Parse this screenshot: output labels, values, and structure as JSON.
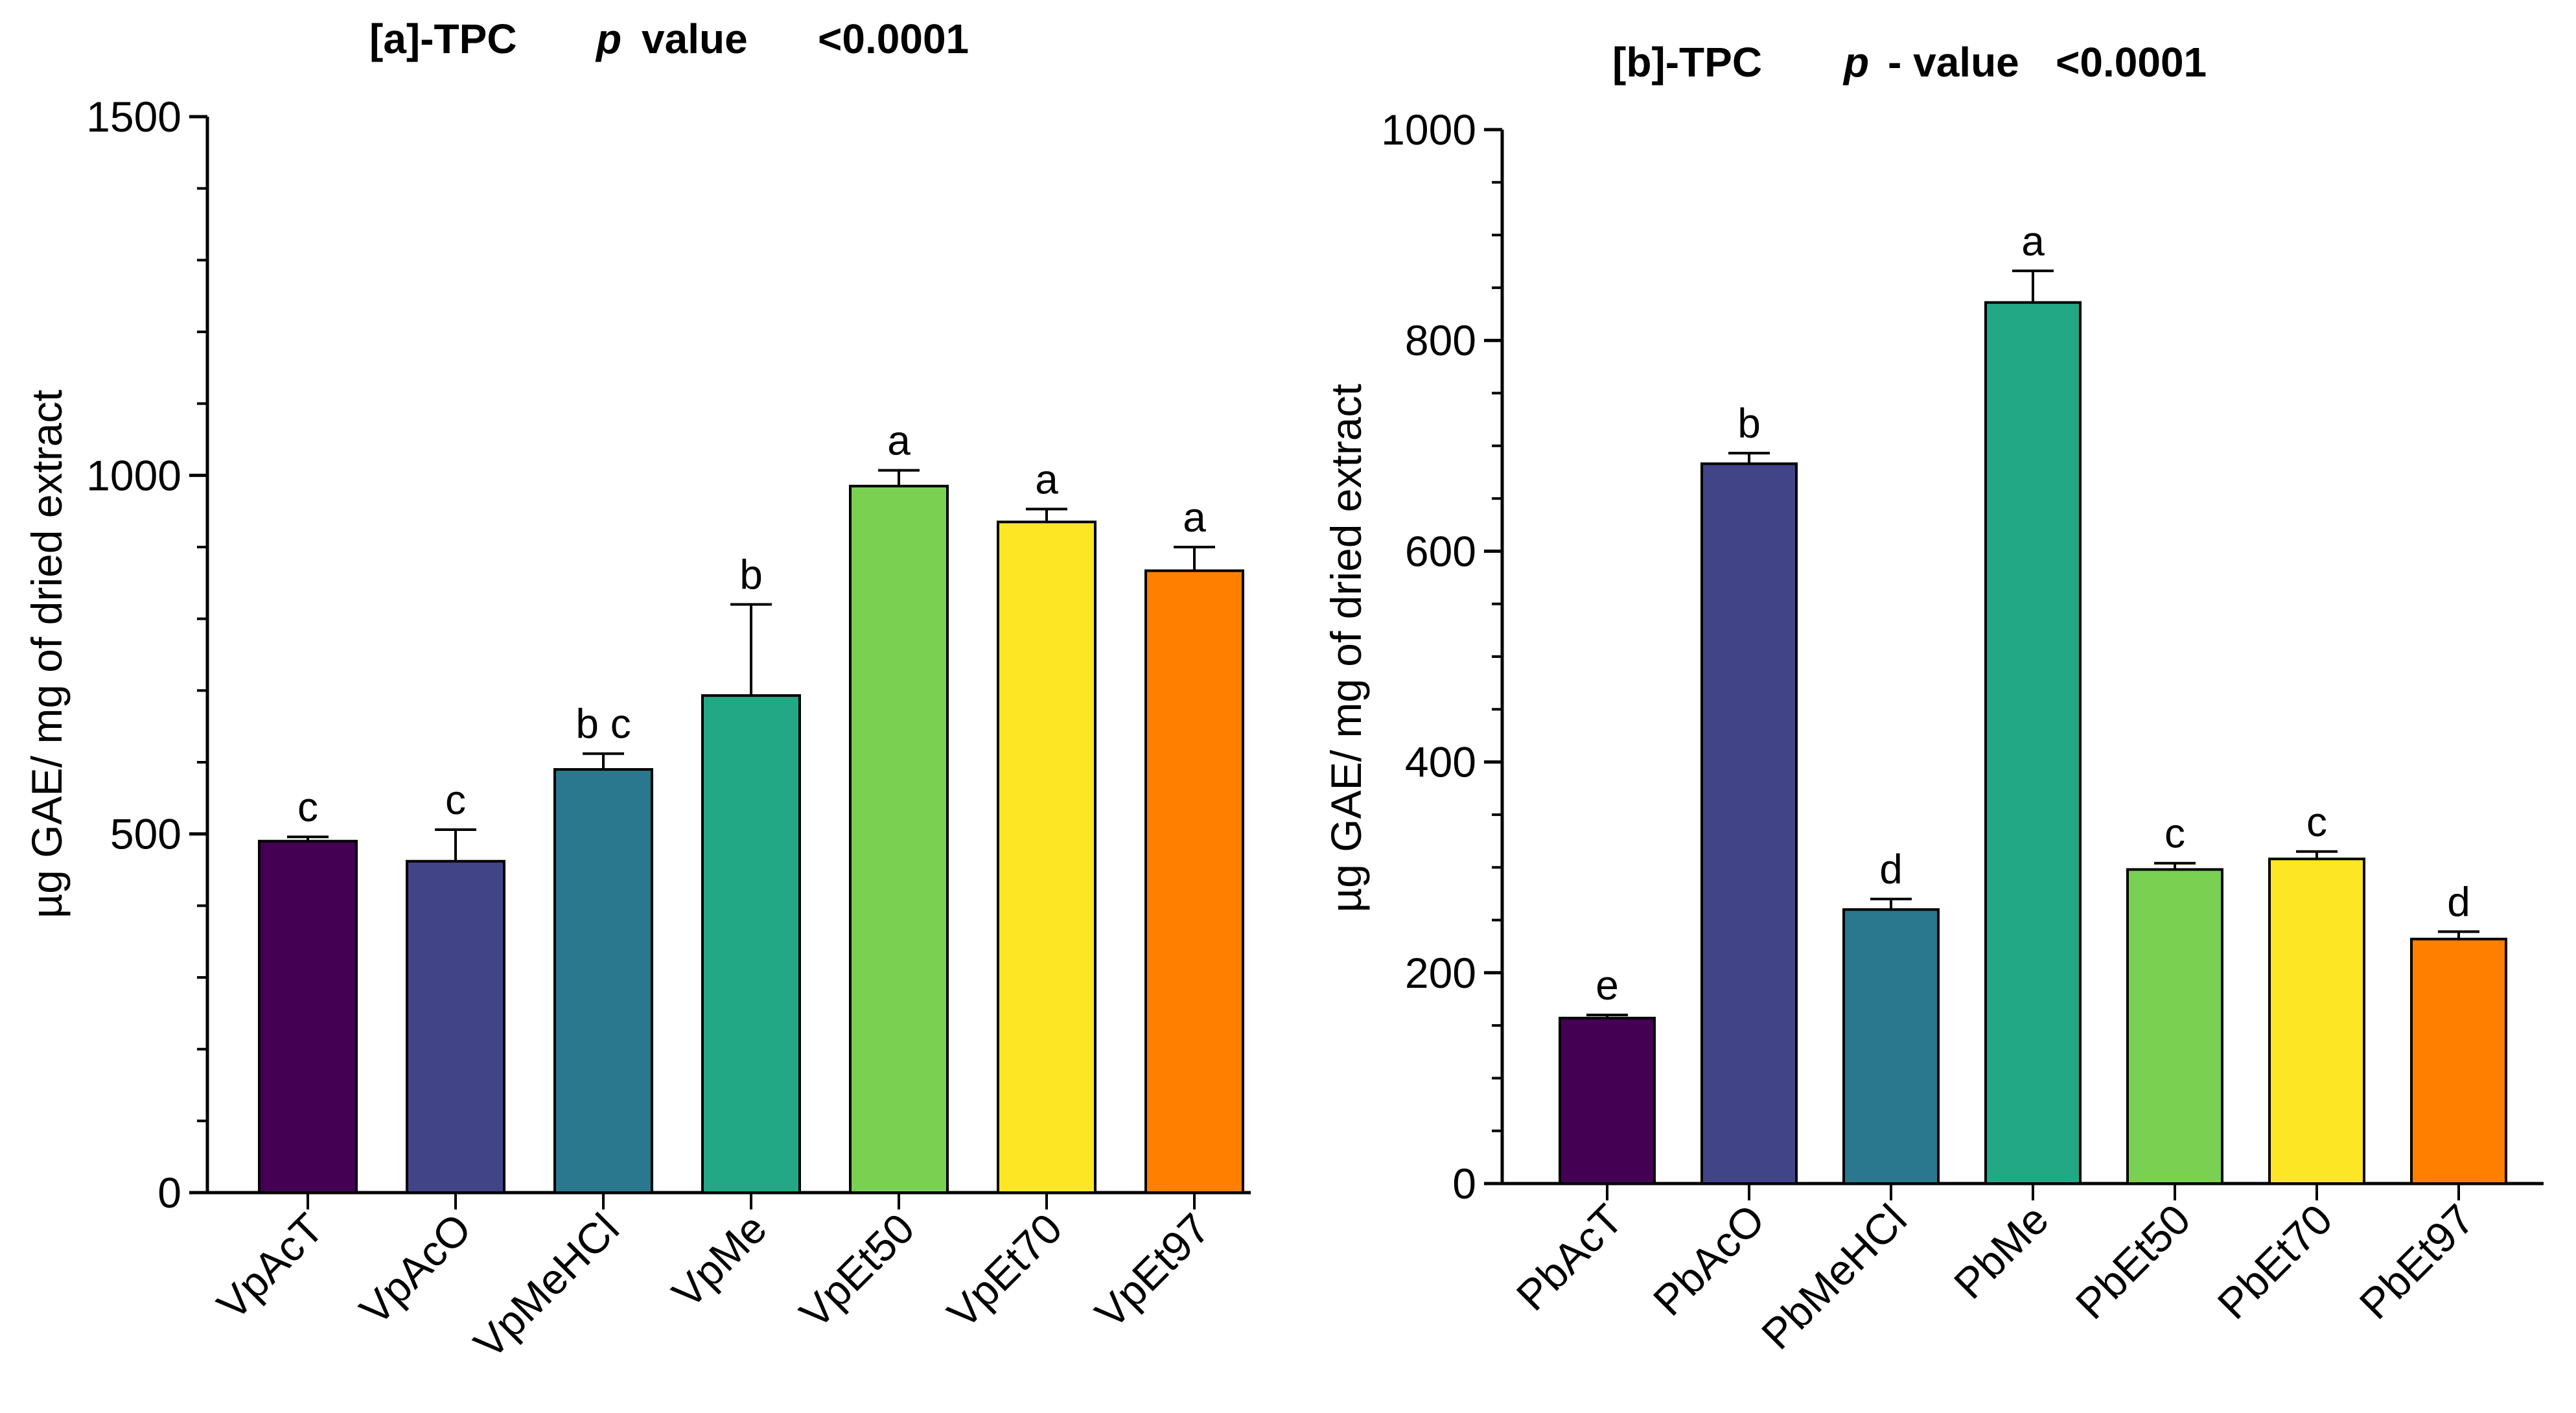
{
  "chart_data": [
    {
      "type": "bar",
      "title_parts": [
        "[a]-TPC",
        "p",
        "value",
        "<0.0001"
      ],
      "title": "[a]-TPC p value <0.0001",
      "ylabel": "µg GAE/ mg of dried extract",
      "xlabel": "",
      "ylim": [
        0,
        1500
      ],
      "yticks": [
        0,
        500,
        1000,
        1500
      ],
      "ytick_labels": [
        "0",
        "500",
        "1000",
        "1500"
      ],
      "categories": [
        "VpAcT",
        "VpAcO",
        "VpMeHCl",
        "VpMe",
        "VpEt50",
        "VpEt70",
        "VpEt97"
      ],
      "values": [
        490,
        462,
        590,
        693,
        985,
        935,
        867
      ],
      "errors": [
        6,
        44,
        22,
        127,
        22,
        18,
        33
      ],
      "significance": [
        "c",
        "c",
        "b c",
        "b",
        "a",
        "a",
        "a"
      ],
      "colors": [
        "#440154",
        "#414487",
        "#2a788e",
        "#22a884",
        "#7ad151",
        "#fde725",
        "#ff8000"
      ]
    },
    {
      "type": "bar",
      "title_parts": [
        "[b]-TPC",
        "p",
        "- value",
        "<0.0001"
      ],
      "title": "[b]-TPC p - value <0.0001",
      "ylabel": "µg GAE/ mg of dried extract",
      "xlabel": "",
      "ylim": [
        0,
        1000
      ],
      "yticks": [
        0,
        200,
        400,
        600,
        800,
        1000
      ],
      "ytick_labels": [
        "0",
        "200",
        "400",
        "600",
        "800",
        "1000"
      ],
      "categories": [
        "PbAcT",
        "PbAcO",
        "PbMeHCl",
        "PbMe",
        "PbEt50",
        "PbEt70",
        "PbEt97"
      ],
      "values": [
        157,
        683,
        260,
        836,
        298,
        308,
        232
      ],
      "errors": [
        3,
        10,
        10,
        30,
        6,
        7,
        7
      ],
      "significance": [
        "e",
        "b",
        "d",
        "a",
        "c",
        "c",
        "d"
      ],
      "colors": [
        "#440154",
        "#414487",
        "#2a788e",
        "#22a884",
        "#7ad151",
        "#fde725",
        "#ff8000"
      ]
    }
  ]
}
